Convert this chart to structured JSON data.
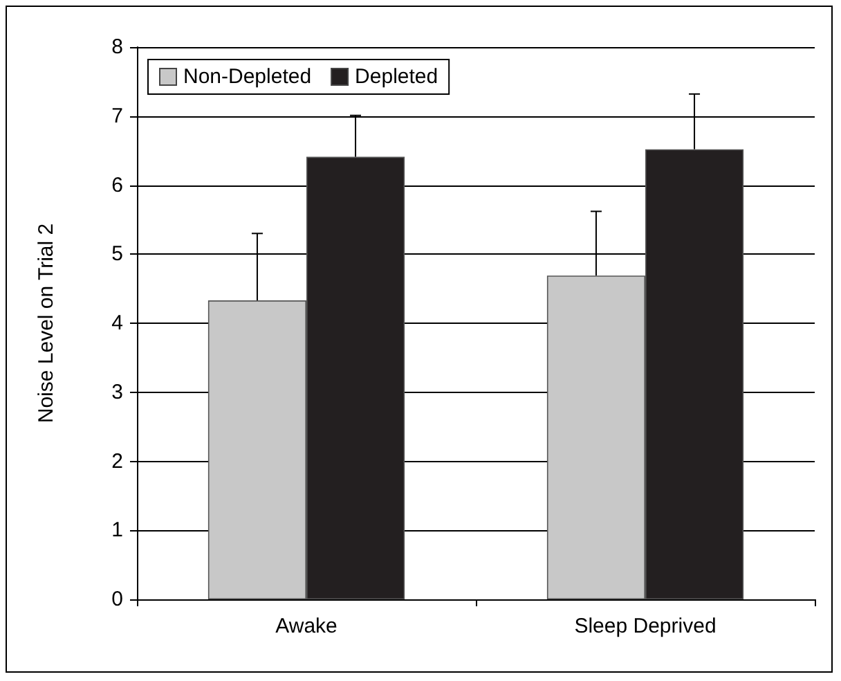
{
  "chart_data": {
    "type": "bar",
    "ylabel": "Noise Level on Trial 2",
    "categories": [
      "Awake",
      "Sleep Deprived"
    ],
    "series": [
      {
        "name": "Non-Depleted",
        "color": "#c8c8c8",
        "values": [
          4.33,
          4.69
        ],
        "errors": [
          [
            4.33,
            5.3
          ],
          [
            4.69,
            5.62
          ]
        ]
      },
      {
        "name": "Depleted",
        "color": "#231f20",
        "values": [
          6.41,
          6.52
        ],
        "errors": [
          [
            6.41,
            7.01
          ],
          [
            6.52,
            7.32
          ]
        ]
      }
    ],
    "ylim": [
      0,
      8
    ],
    "yticks": [
      0,
      1,
      2,
      3,
      4,
      5,
      6,
      7,
      8
    ],
    "grid": "y",
    "legend": "top left"
  }
}
